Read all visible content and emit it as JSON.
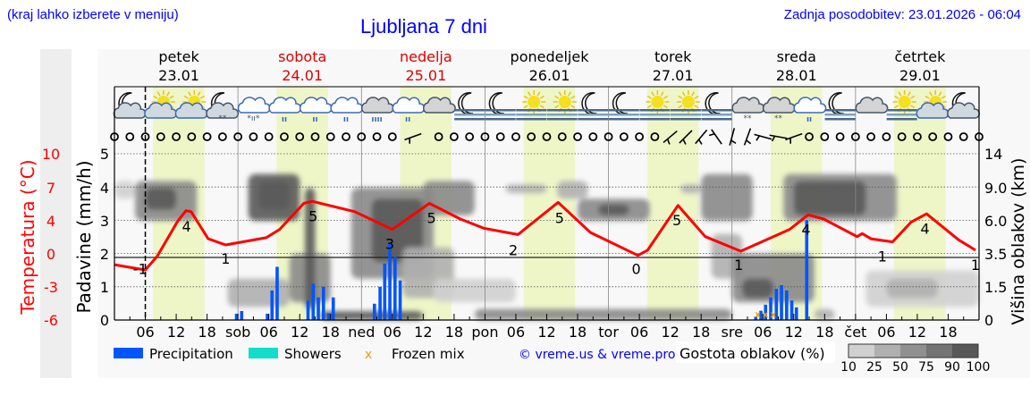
{
  "header": {
    "location_hint": "(kraj lahko izberete v meniju)",
    "title": "Ljubljana 7 dni",
    "updated": "Zadnja posodobitev: 23.01.2026 - 06:04"
  },
  "days": [
    {
      "name": "petek",
      "date": "23.01",
      "color": "#000000"
    },
    {
      "name": "sobota",
      "date": "24.01",
      "color": "#dd0000"
    },
    {
      "name": "nedelja",
      "date": "25.01",
      "color": "#dd0000"
    },
    {
      "name": "ponedeljek",
      "date": "26.01",
      "color": "#000000"
    },
    {
      "name": "torek",
      "date": "27.01",
      "color": "#000000"
    },
    {
      "name": "sreda",
      "date": "28.01",
      "color": "#000000"
    },
    {
      "name": "četrtek",
      "date": "29.01",
      "color": "#000000"
    }
  ],
  "weather_icons": [
    "moon-cloud",
    "sun-cloud",
    "sun-cloud",
    "moon-cloud-snow",
    "cloud-sleet",
    "cloud-rain",
    "cloud-rain",
    "cloud-rain",
    "cloud-heavy-rain",
    "cloud-rain",
    "cloud",
    "moon-fog",
    "moon-fog",
    "sun-fog",
    "sun-fog",
    "moon-fog",
    "moon-fog",
    "sun-fog",
    "sun-fog",
    "moon-fog",
    "cloud-snow",
    "cloud-snow",
    "cloud-rain",
    "moon-fog",
    "cloud",
    "sun-fog",
    "sun-cloud",
    "moon-cloud"
  ],
  "wind_barbs": [
    {
      "hour": 58,
      "angle": -20
    },
    {
      "hour": 108,
      "angle": -40
    },
    {
      "hour": 111,
      "angle": -45
    },
    {
      "hour": 114,
      "angle": -50
    },
    {
      "hour": 117,
      "angle": 55
    },
    {
      "hour": 120,
      "angle": -75
    },
    {
      "hour": 123,
      "angle": -70
    },
    {
      "hour": 126,
      "angle": 15
    },
    {
      "hour": 129,
      "angle": 10
    },
    {
      "hour": 132,
      "angle": -20
    }
  ],
  "chart_data": {
    "type": "line",
    "xlim": [
      0,
      168
    ],
    "now_hour": 6,
    "x_ticks": [
      "06",
      "12",
      "18",
      "sob",
      "06",
      "12",
      "18",
      "ned",
      "06",
      "12",
      "18",
      "pon",
      "06",
      "12",
      "18",
      "tor",
      "06",
      "12",
      "18",
      "sre",
      "06",
      "12",
      "18",
      "čet",
      "06",
      "12",
      "18"
    ],
    "daylight": [
      [
        7.5,
        17.5
      ],
      [
        31.5,
        41.5
      ],
      [
        55.5,
        65.5
      ],
      [
        79.5,
        89.5
      ],
      [
        103.5,
        113.5
      ],
      [
        127.5,
        137.5
      ],
      [
        151.5,
        161.5
      ]
    ],
    "left_axis_outer": {
      "label": "Temperatura (°C)",
      "ticks": [
        "10",
        "7",
        "4",
        "0",
        "-3",
        "-6"
      ],
      "range": [
        -6,
        10
      ],
      "color": "#ff0000"
    },
    "left_axis_inner": {
      "label": "Padavine (mm/h)",
      "ticks": [
        "0",
        "1",
        "2",
        "3",
        "4",
        "5"
      ],
      "range": [
        0,
        5
      ]
    },
    "right_axis": {
      "label": "Višina oblakov (km)",
      "ticks": [
        "0",
        "1.5",
        "3.5",
        "6.0",
        "9.0",
        "14"
      ]
    },
    "temperature": {
      "color": "#ff0000",
      "x": [
        0,
        6,
        8.3,
        12.3,
        13.9,
        14.9,
        18.2,
        21.6,
        29.5,
        32.1,
        36.8,
        38.4,
        46.7,
        54,
        61.2,
        67.2,
        71.8,
        78.4,
        86.2,
        92.5,
        101.7,
        103.6,
        109.5,
        114.8,
        121.7,
        131.2,
        134.8,
        137.8,
        144.3,
        145.3,
        147,
        151.2,
        154.8,
        157.8,
        164,
        167.3
      ],
      "y": [
        -0.7,
        -1.2,
        0.1,
        3.5,
        4.5,
        4.4,
        1.8,
        1.2,
        1.9,
        2.7,
        5.2,
        5.4,
        4.4,
        2.7,
        5.2,
        3.7,
        2.8,
        2.2,
        5.3,
        2.4,
        0.2,
        0.7,
        5.0,
        2.0,
        0.6,
        2.7,
        4.1,
        3.7,
        2.0,
        2.3,
        1.8,
        1.5,
        3.4,
        4.2,
        1.7,
        0.7
      ]
    },
    "temperature_labels": [
      {
        "hour": 5,
        "value": "-1"
      },
      {
        "hour": 14,
        "value": "4"
      },
      {
        "hour": 21.6,
        "value": "1"
      },
      {
        "hour": 38.6,
        "value": "5"
      },
      {
        "hour": 53.5,
        "value": "3"
      },
      {
        "hour": 61.6,
        "value": "5"
      },
      {
        "hour": 77.5,
        "value": "2"
      },
      {
        "hour": 86.5,
        "value": "5"
      },
      {
        "hour": 101.4,
        "value": "0"
      },
      {
        "hour": 109.3,
        "value": "5"
      },
      {
        "hour": 121.3,
        "value": "1"
      },
      {
        "hour": 134.4,
        "value": "4"
      },
      {
        "hour": 149.2,
        "value": "1"
      },
      {
        "hour": 157.5,
        "value": "4"
      },
      {
        "hour": 167.3,
        "value": "1"
      }
    ],
    "precipitation": {
      "color": "#0055ff",
      "hours": [
        23.7,
        24.7,
        29.7,
        30.6,
        31.6,
        37.6,
        38.6,
        39.6,
        40.6,
        41.6,
        42.5,
        50.5,
        51.6,
        52.5,
        53.5,
        54.5,
        55.5,
        124.6,
        125.6,
        126.5,
        127.5,
        128.6,
        129.6,
        130.6,
        131.6,
        132.5,
        134.5
      ],
      "values": [
        0.19,
        0.27,
        0.19,
        0.89,
        1.6,
        0.59,
        1.09,
        0.68,
        1.0,
        0.2,
        0.68,
        0.49,
        1.0,
        1.7,
        2.3,
        1.9,
        1.19,
        0.1,
        0.28,
        0.46,
        0.68,
        0.94,
        1.05,
        0.89,
        0.59,
        0.38,
        3.0
      ]
    },
    "frozen_mix_hours": [
      125,
      126.5,
      128
    ],
    "cloud_density": [
      [
        0,
        4,
        8,
        10,
        25
      ],
      [
        4,
        16,
        6,
        10,
        75
      ],
      [
        6,
        12,
        7,
        9,
        90
      ],
      [
        22,
        34,
        0.6,
        2,
        50
      ],
      [
        26,
        36,
        6,
        11,
        90
      ],
      [
        28,
        34,
        7,
        10,
        90
      ],
      [
        34,
        42,
        0.8,
        3.5,
        75
      ],
      [
        37,
        39,
        0.5,
        9,
        90
      ],
      [
        40,
        60,
        0,
        0.4,
        90
      ],
      [
        46,
        62,
        2,
        9,
        75
      ],
      [
        50,
        60,
        3,
        8,
        90
      ],
      [
        56,
        66,
        1,
        4,
        50
      ],
      [
        60,
        70,
        6.5,
        10,
        75
      ],
      [
        62,
        78,
        0.8,
        2,
        25
      ],
      [
        70,
        120,
        0,
        0.5,
        75
      ],
      [
        76,
        84,
        8.5,
        9.5,
        50
      ],
      [
        86,
        92,
        8,
        10,
        50
      ],
      [
        90,
        104,
        6,
        8,
        75
      ],
      [
        94,
        100,
        6.5,
        7.5,
        90
      ],
      [
        110,
        114,
        8.5,
        9.5,
        50
      ],
      [
        114,
        124,
        6,
        11,
        75
      ],
      [
        116,
        122,
        2,
        5,
        50
      ],
      [
        120,
        136,
        0.8,
        3.5,
        75
      ],
      [
        122,
        128,
        1,
        2,
        90
      ],
      [
        130,
        152,
        6,
        11,
        75
      ],
      [
        132,
        146,
        6.5,
        10,
        90
      ],
      [
        146,
        168,
        0.6,
        2.5,
        25
      ],
      [
        150,
        160,
        1,
        2,
        50
      ],
      [
        136,
        140,
        0,
        0.5,
        50
      ]
    ],
    "cloud_density_scale": [
      "10",
      "25",
      "50",
      "75",
      "90",
      "100"
    ]
  },
  "legend": {
    "precipitation": "Precipitation",
    "precipitation_color": "#0055ff",
    "showers": "Showers",
    "showers_color": "#11ddcc",
    "frozen_mix": "Frozen mix",
    "frozen_mix_color": "#f0a000",
    "copyright": "© vreme.us & vreme.pro",
    "cloud_density_title": "Gostota oblakov (%)",
    "cloud_density_colors": [
      "#d0d0d0",
      "#b0b0b0",
      "#909090",
      "#747474",
      "#585858"
    ]
  }
}
